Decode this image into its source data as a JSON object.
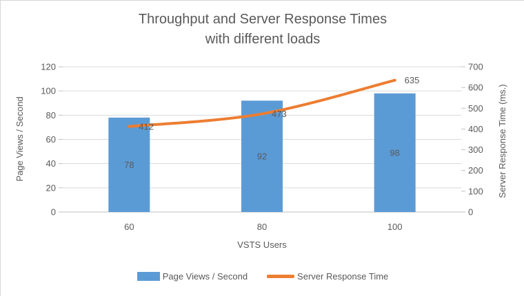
{
  "window": {
    "background": "#ffffff",
    "border_color": "#d6d6d6"
  },
  "chart_data": {
    "type": "combo-bar-line",
    "title": "Throughput and Server Response Times with different loads",
    "title_lines": [
      "Throughput and Server Response Times",
      "with different loads"
    ],
    "categories": [
      "60",
      "80",
      "100"
    ],
    "x_axis": {
      "title": "VSTS Users"
    },
    "left_axis": {
      "title": "Page Views / Second",
      "min": 0,
      "max": 120,
      "step": 20,
      "ticks": [
        "0",
        "20",
        "40",
        "60",
        "80",
        "100",
        "120"
      ]
    },
    "right_axis": {
      "title": "Server Response Time (ms.)",
      "min": 0,
      "max": 700,
      "step": 100,
      "ticks": [
        "0",
        "100",
        "200",
        "300",
        "400",
        "500",
        "600",
        "700"
      ]
    },
    "series": [
      {
        "name": "Page Views / Second",
        "type": "bar",
        "axis": "left",
        "values": [
          78,
          92,
          98
        ],
        "data_labels": [
          "78",
          "92",
          "98"
        ],
        "color": "#5b9bd5"
      },
      {
        "name": "Server Response Time",
        "type": "line",
        "axis": "right",
        "values": [
          412,
          473,
          635
        ],
        "data_labels": [
          "412",
          "473",
          "635"
        ],
        "color": "#ed7d31"
      }
    ],
    "legend": {
      "position": "bottom",
      "items": [
        "Page Views / Second",
        "Server Response Time"
      ]
    },
    "grid": true,
    "colors": {
      "gridline": "#d9d9d9",
      "axis_line": "#bfbfbf",
      "tick_label": "#595959",
      "title": "#595959",
      "data_label": "#404040"
    }
  }
}
